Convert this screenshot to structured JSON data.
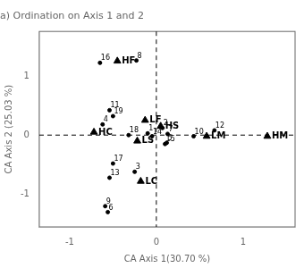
{
  "chart_data": {
    "type": "scatter",
    "title": "a) Ordination on Axis 1 and 2",
    "xlabel": "CA Axis 1(30.70 %)",
    "ylabel": "CA Axis 2 (25.03 %)",
    "xlim": [
      -1.35,
      1.6
    ],
    "ylim": [
      -1.55,
      1.75
    ],
    "xticks": [
      -1,
      0,
      1
    ],
    "yticks": [
      -1,
      0,
      1
    ],
    "grid": false,
    "hlines": [
      0
    ],
    "vlines": [
      0
    ],
    "series": [
      {
        "marker": "circle",
        "color": "#000000",
        "labels": [
          "1",
          "2",
          "3",
          "4",
          "5",
          "6",
          "7",
          "8",
          "9",
          "10",
          "11",
          "12",
          "13",
          "14",
          "15",
          "16",
          "17",
          "18",
          "19"
        ],
        "x": [
          -0.1,
          0.07,
          -0.25,
          -0.62,
          0.12,
          -0.56,
          0.13,
          -0.23,
          -0.59,
          0.43,
          -0.54,
          0.67,
          -0.54,
          -0.05,
          0.1,
          -0.65,
          -0.5,
          -0.32,
          -0.5
        ],
        "values": [
          0.03,
          0.12,
          -0.62,
          0.18,
          -0.13,
          -1.3,
          0.02,
          1.26,
          -1.2,
          -0.02,
          0.42,
          0.08,
          -0.72,
          -0.02,
          -0.15,
          1.22,
          -0.48,
          0.0,
          0.32
        ]
      },
      {
        "marker": "triangle",
        "color": "#000000",
        "labels": [
          "HF",
          "HC",
          "HS",
          "LF",
          "LC",
          "LM",
          "LS",
          "HM"
        ],
        "x": [
          -0.45,
          -0.72,
          0.05,
          -0.13,
          -0.18,
          0.58,
          -0.22,
          1.28
        ],
        "values": [
          1.25,
          0.05,
          0.15,
          0.25,
          -0.78,
          -0.02,
          -0.1,
          -0.02
        ]
      }
    ]
  }
}
